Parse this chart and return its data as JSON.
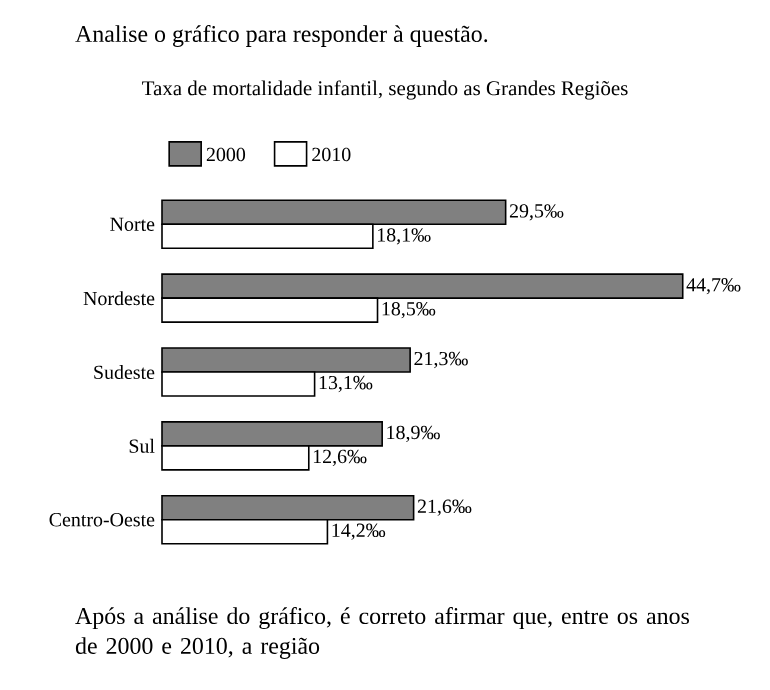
{
  "chart_data": {
    "type": "bar",
    "orientation": "horizontal",
    "title": "Taxa de mortalidade infantil, segundo as Grandes Regiões",
    "categories": [
      "Norte",
      "Nordeste",
      "Sudeste",
      "Sul",
      "Centro-Oeste"
    ],
    "series": [
      {
        "name": "2000",
        "color": "#808080",
        "values": [
          29.5,
          44.7,
          21.3,
          18.9,
          21.6
        ],
        "value_labels": [
          "29,5‰",
          "44,7‰",
          "21,3‰",
          "18,9‰",
          "21,6‰"
        ]
      },
      {
        "name": "2010",
        "color": "#ffffff",
        "values": [
          18.1,
          18.5,
          13.1,
          12.6,
          14.2
        ],
        "value_labels": [
          "18,1‰",
          "18,5‰",
          "13,1‰",
          "12,6‰",
          "14,2‰"
        ]
      }
    ],
    "legend": "top",
    "annotations": [
      "Analise o gráfico para responder à questão.",
      "Após a análise do gráfico, é correto afirmar que, entre os anos de 2000 e 2010, a região"
    ]
  }
}
